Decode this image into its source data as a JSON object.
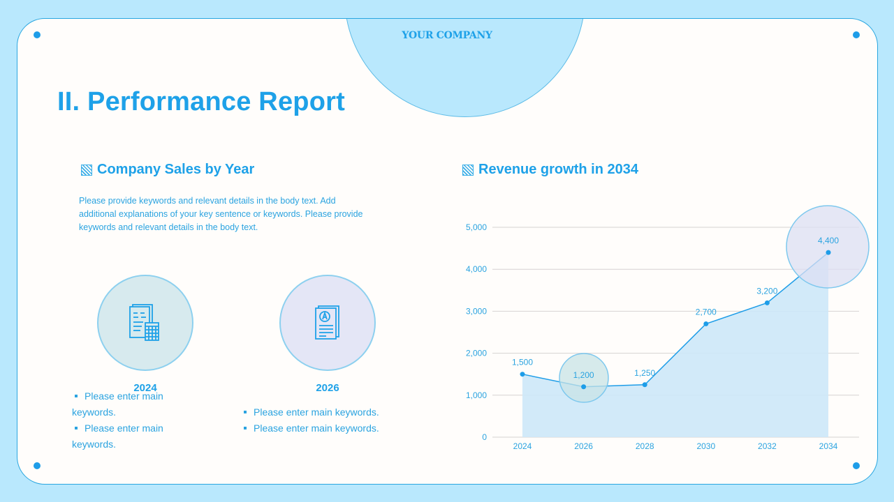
{
  "header": {
    "company": "YOUR COMPANY"
  },
  "page": {
    "title": "II. Performance Report"
  },
  "left_section": {
    "title": "Company Sales by Year",
    "title_icon": "hatched-square-icon",
    "body": "Please provide keywords and relevant details in the body text. Add additional explanations of your key sentence or keywords. Please provide keywords and relevant details in the body text.",
    "items": [
      {
        "year": "2024",
        "icon": "document-calculator-icon",
        "bullets": [
          "Please enter main keywords.",
          "Please enter main keywords."
        ]
      },
      {
        "year": "2026",
        "icon": "graded-document-icon",
        "bullets": [
          "Please enter main keywords.",
          "Please enter main keywords."
        ]
      }
    ]
  },
  "right_section": {
    "title": "Revenue growth in 2034",
    "title_icon": "hatched-square-icon"
  },
  "colors": {
    "accent": "#1ea1e8",
    "background": "#b9e8fd",
    "card": "#fffdfb",
    "border": "#29a6e0",
    "area_fill": "#cde8f8"
  },
  "chart_data": {
    "type": "area",
    "title": "Revenue growth in 2034",
    "categories": [
      "2024",
      "2026",
      "2028",
      "2030",
      "2032",
      "2034"
    ],
    "values": [
      1500,
      1200,
      1250,
      2700,
      3200,
      4400
    ],
    "data_labels": [
      "1,500",
      "1,200",
      "1,250",
      "2,700",
      "3,200",
      "4,400"
    ],
    "yticks": [
      "0",
      "1,000",
      "2,000",
      "3,000",
      "4,000",
      "5,000"
    ],
    "ylim": [
      0,
      5000
    ],
    "xlabel": "",
    "ylabel": "",
    "grid": true,
    "highlights": [
      "2026",
      "2034"
    ]
  }
}
